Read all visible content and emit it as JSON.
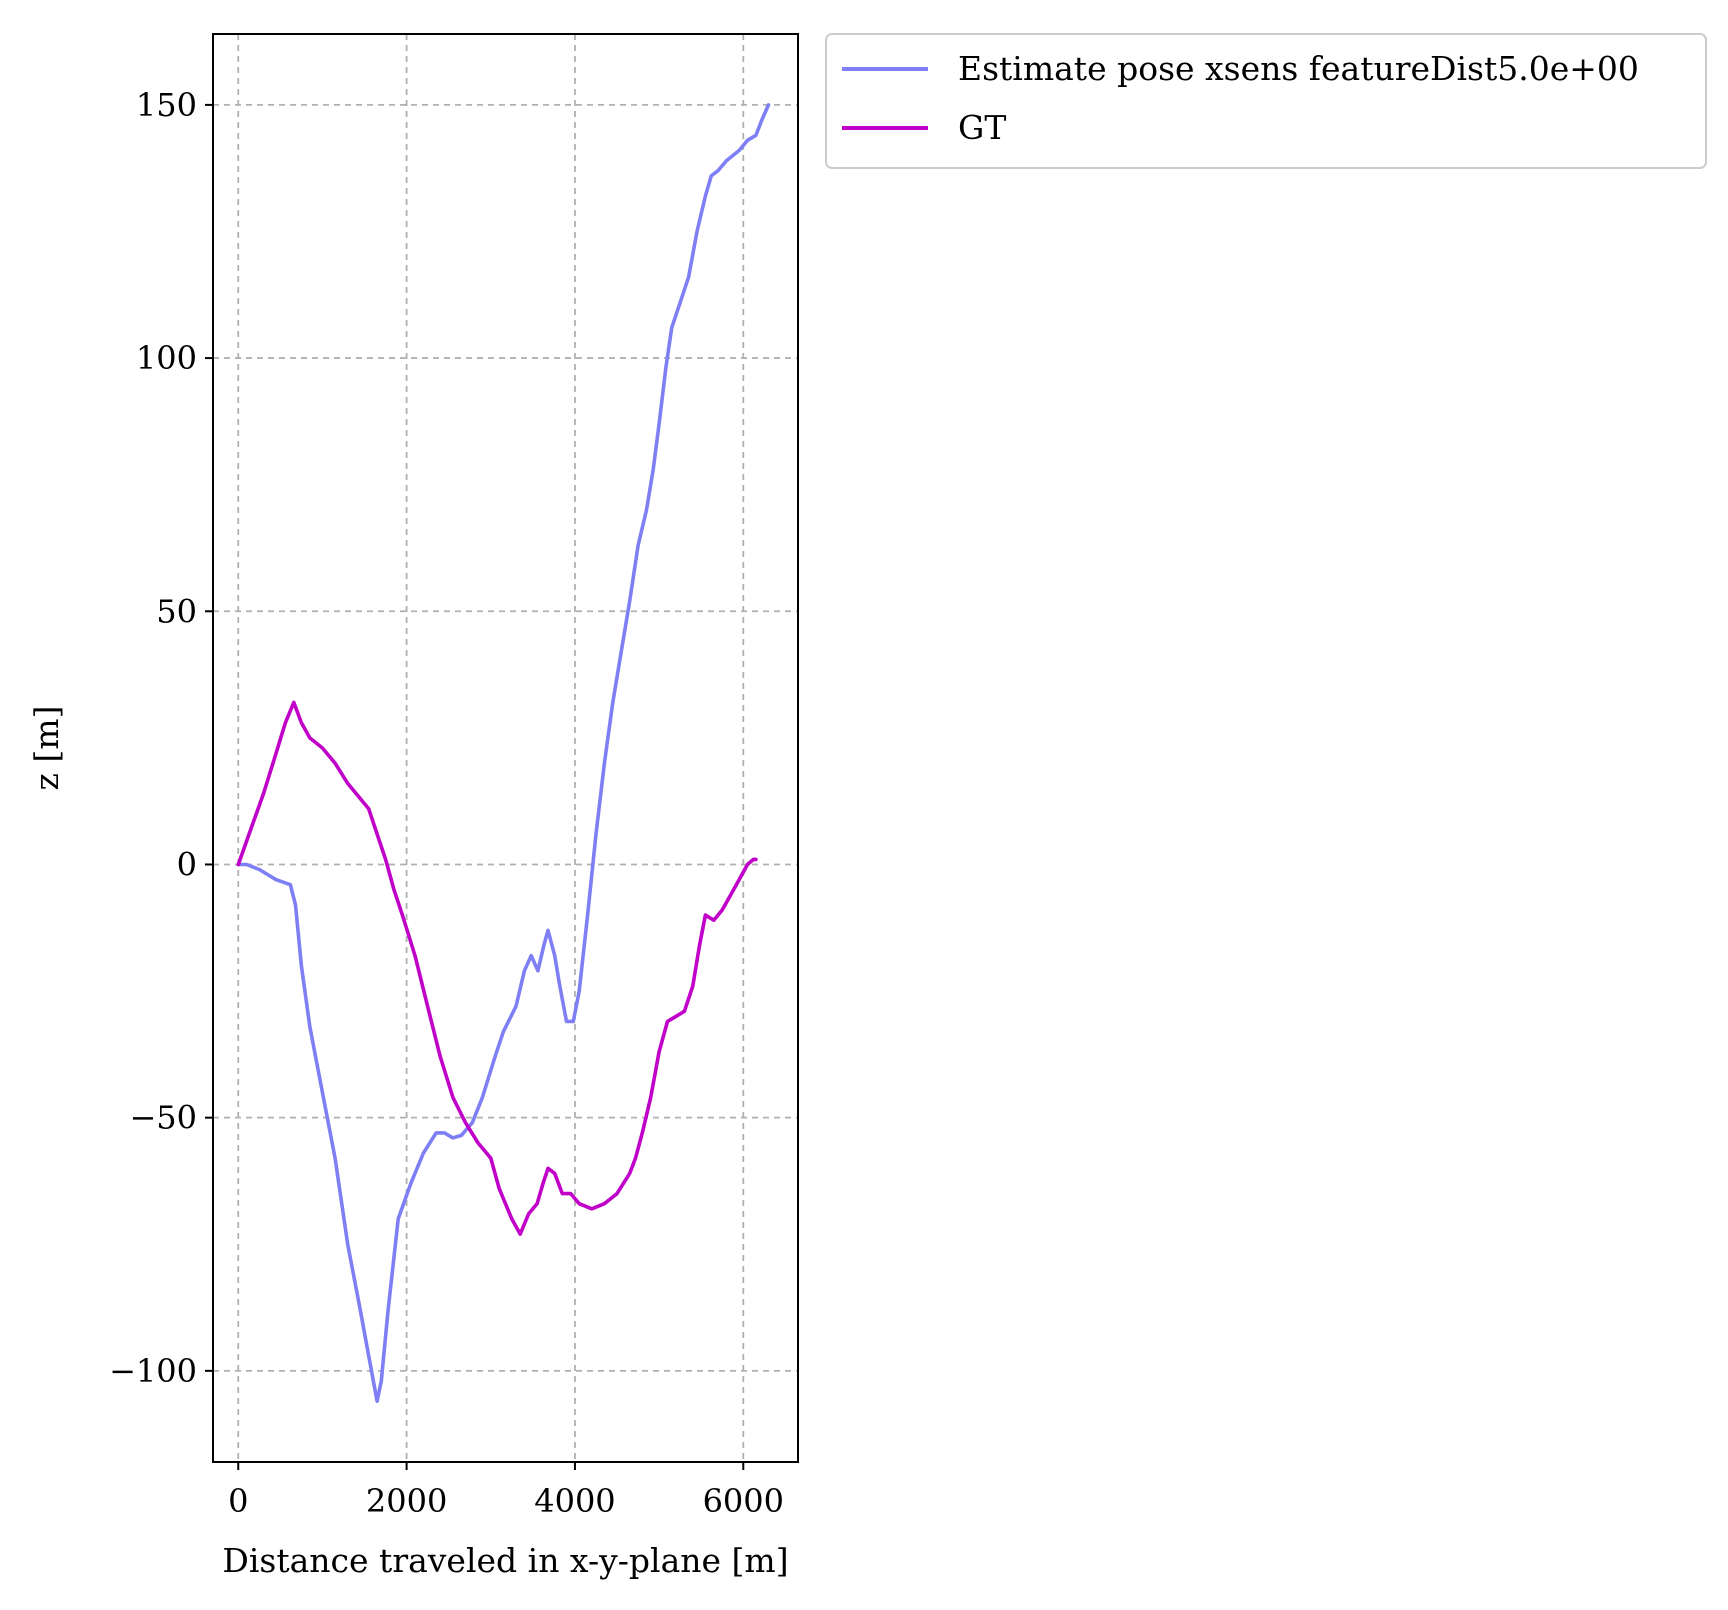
{
  "chart_data": {
    "type": "line",
    "title": "",
    "xlabel": "Distance traveled in x-y-plane [m]",
    "ylabel": "z [m]",
    "xlim": [
      -300,
      6650
    ],
    "ylim": [
      -118,
      164
    ],
    "xticks": [
      0,
      2000,
      4000,
      6000
    ],
    "xtick_labels": [
      "0",
      "2000",
      "4000",
      "6000"
    ],
    "yticks": [
      -100,
      -50,
      0,
      50,
      100,
      150
    ],
    "ytick_labels": [
      "−100",
      "−50",
      "0",
      "50",
      "100",
      "150"
    ],
    "grid": true,
    "legend_position": "outside-top-right",
    "series": [
      {
        "name": "Estimate pose xsens featureDist5.0e+00",
        "color": "#7f7ff5",
        "points": [
          [
            0,
            0
          ],
          [
            100,
            0
          ],
          [
            250,
            -1
          ],
          [
            450,
            -3
          ],
          [
            620,
            -4
          ],
          [
            680,
            -8
          ],
          [
            750,
            -20
          ],
          [
            850,
            -32
          ],
          [
            1000,
            -45
          ],
          [
            1150,
            -58
          ],
          [
            1300,
            -75
          ],
          [
            1450,
            -88
          ],
          [
            1560,
            -98
          ],
          [
            1650,
            -106
          ],
          [
            1700,
            -102
          ],
          [
            1780,
            -88
          ],
          [
            1900,
            -70
          ],
          [
            2050,
            -63
          ],
          [
            2200,
            -57
          ],
          [
            2350,
            -53
          ],
          [
            2450,
            -53
          ],
          [
            2550,
            -54
          ],
          [
            2650,
            -53.5
          ],
          [
            2780,
            -51
          ],
          [
            2900,
            -46
          ],
          [
            3050,
            -38
          ],
          [
            3150,
            -33
          ],
          [
            3300,
            -28
          ],
          [
            3400,
            -21
          ],
          [
            3480,
            -18
          ],
          [
            3560,
            -21
          ],
          [
            3630,
            -16
          ],
          [
            3680,
            -13
          ],
          [
            3760,
            -18
          ],
          [
            3820,
            -24
          ],
          [
            3900,
            -31
          ],
          [
            3980,
            -31
          ],
          [
            4050,
            -25
          ],
          [
            4150,
            -10
          ],
          [
            4250,
            6
          ],
          [
            4350,
            20
          ],
          [
            4450,
            32
          ],
          [
            4550,
            42
          ],
          [
            4650,
            52
          ],
          [
            4750,
            63
          ],
          [
            4850,
            70
          ],
          [
            4930,
            78
          ],
          [
            5000,
            87
          ],
          [
            5080,
            98
          ],
          [
            5150,
            106
          ],
          [
            5250,
            111
          ],
          [
            5350,
            116
          ],
          [
            5450,
            125
          ],
          [
            5550,
            132
          ],
          [
            5620,
            136
          ],
          [
            5700,
            137
          ],
          [
            5800,
            139
          ],
          [
            5950,
            141
          ],
          [
            6050,
            143
          ],
          [
            6150,
            144
          ],
          [
            6220,
            147
          ],
          [
            6300,
            150
          ]
        ]
      },
      {
        "name": "GT",
        "color": "#c000c8",
        "points": [
          [
            0,
            0
          ],
          [
            150,
            7
          ],
          [
            300,
            14
          ],
          [
            450,
            22
          ],
          [
            560,
            28
          ],
          [
            660,
            32
          ],
          [
            750,
            28
          ],
          [
            850,
            25
          ],
          [
            1000,
            23
          ],
          [
            1150,
            20
          ],
          [
            1300,
            16
          ],
          [
            1450,
            13
          ],
          [
            1550,
            11
          ],
          [
            1650,
            6
          ],
          [
            1750,
            1
          ],
          [
            1850,
            -5
          ],
          [
            1950,
            -10
          ],
          [
            2100,
            -18
          ],
          [
            2250,
            -28
          ],
          [
            2400,
            -38
          ],
          [
            2550,
            -46
          ],
          [
            2700,
            -51
          ],
          [
            2850,
            -55
          ],
          [
            3000,
            -58
          ],
          [
            3100,
            -64
          ],
          [
            3250,
            -70
          ],
          [
            3350,
            -73
          ],
          [
            3450,
            -69
          ],
          [
            3550,
            -67
          ],
          [
            3620,
            -63
          ],
          [
            3680,
            -60
          ],
          [
            3760,
            -61
          ],
          [
            3850,
            -65
          ],
          [
            3950,
            -65
          ],
          [
            4050,
            -67
          ],
          [
            4200,
            -68
          ],
          [
            4350,
            -67
          ],
          [
            4500,
            -65
          ],
          [
            4650,
            -61
          ],
          [
            4720,
            -58
          ],
          [
            4800,
            -53
          ],
          [
            4900,
            -46
          ],
          [
            5000,
            -37
          ],
          [
            5100,
            -31
          ],
          [
            5200,
            -30
          ],
          [
            5300,
            -29
          ],
          [
            5400,
            -24
          ],
          [
            5480,
            -16
          ],
          [
            5550,
            -10
          ],
          [
            5650,
            -11
          ],
          [
            5750,
            -9
          ],
          [
            5850,
            -6
          ],
          [
            5950,
            -3
          ],
          [
            6050,
            0
          ],
          [
            6120,
            1
          ],
          [
            6150,
            1
          ]
        ]
      }
    ]
  }
}
